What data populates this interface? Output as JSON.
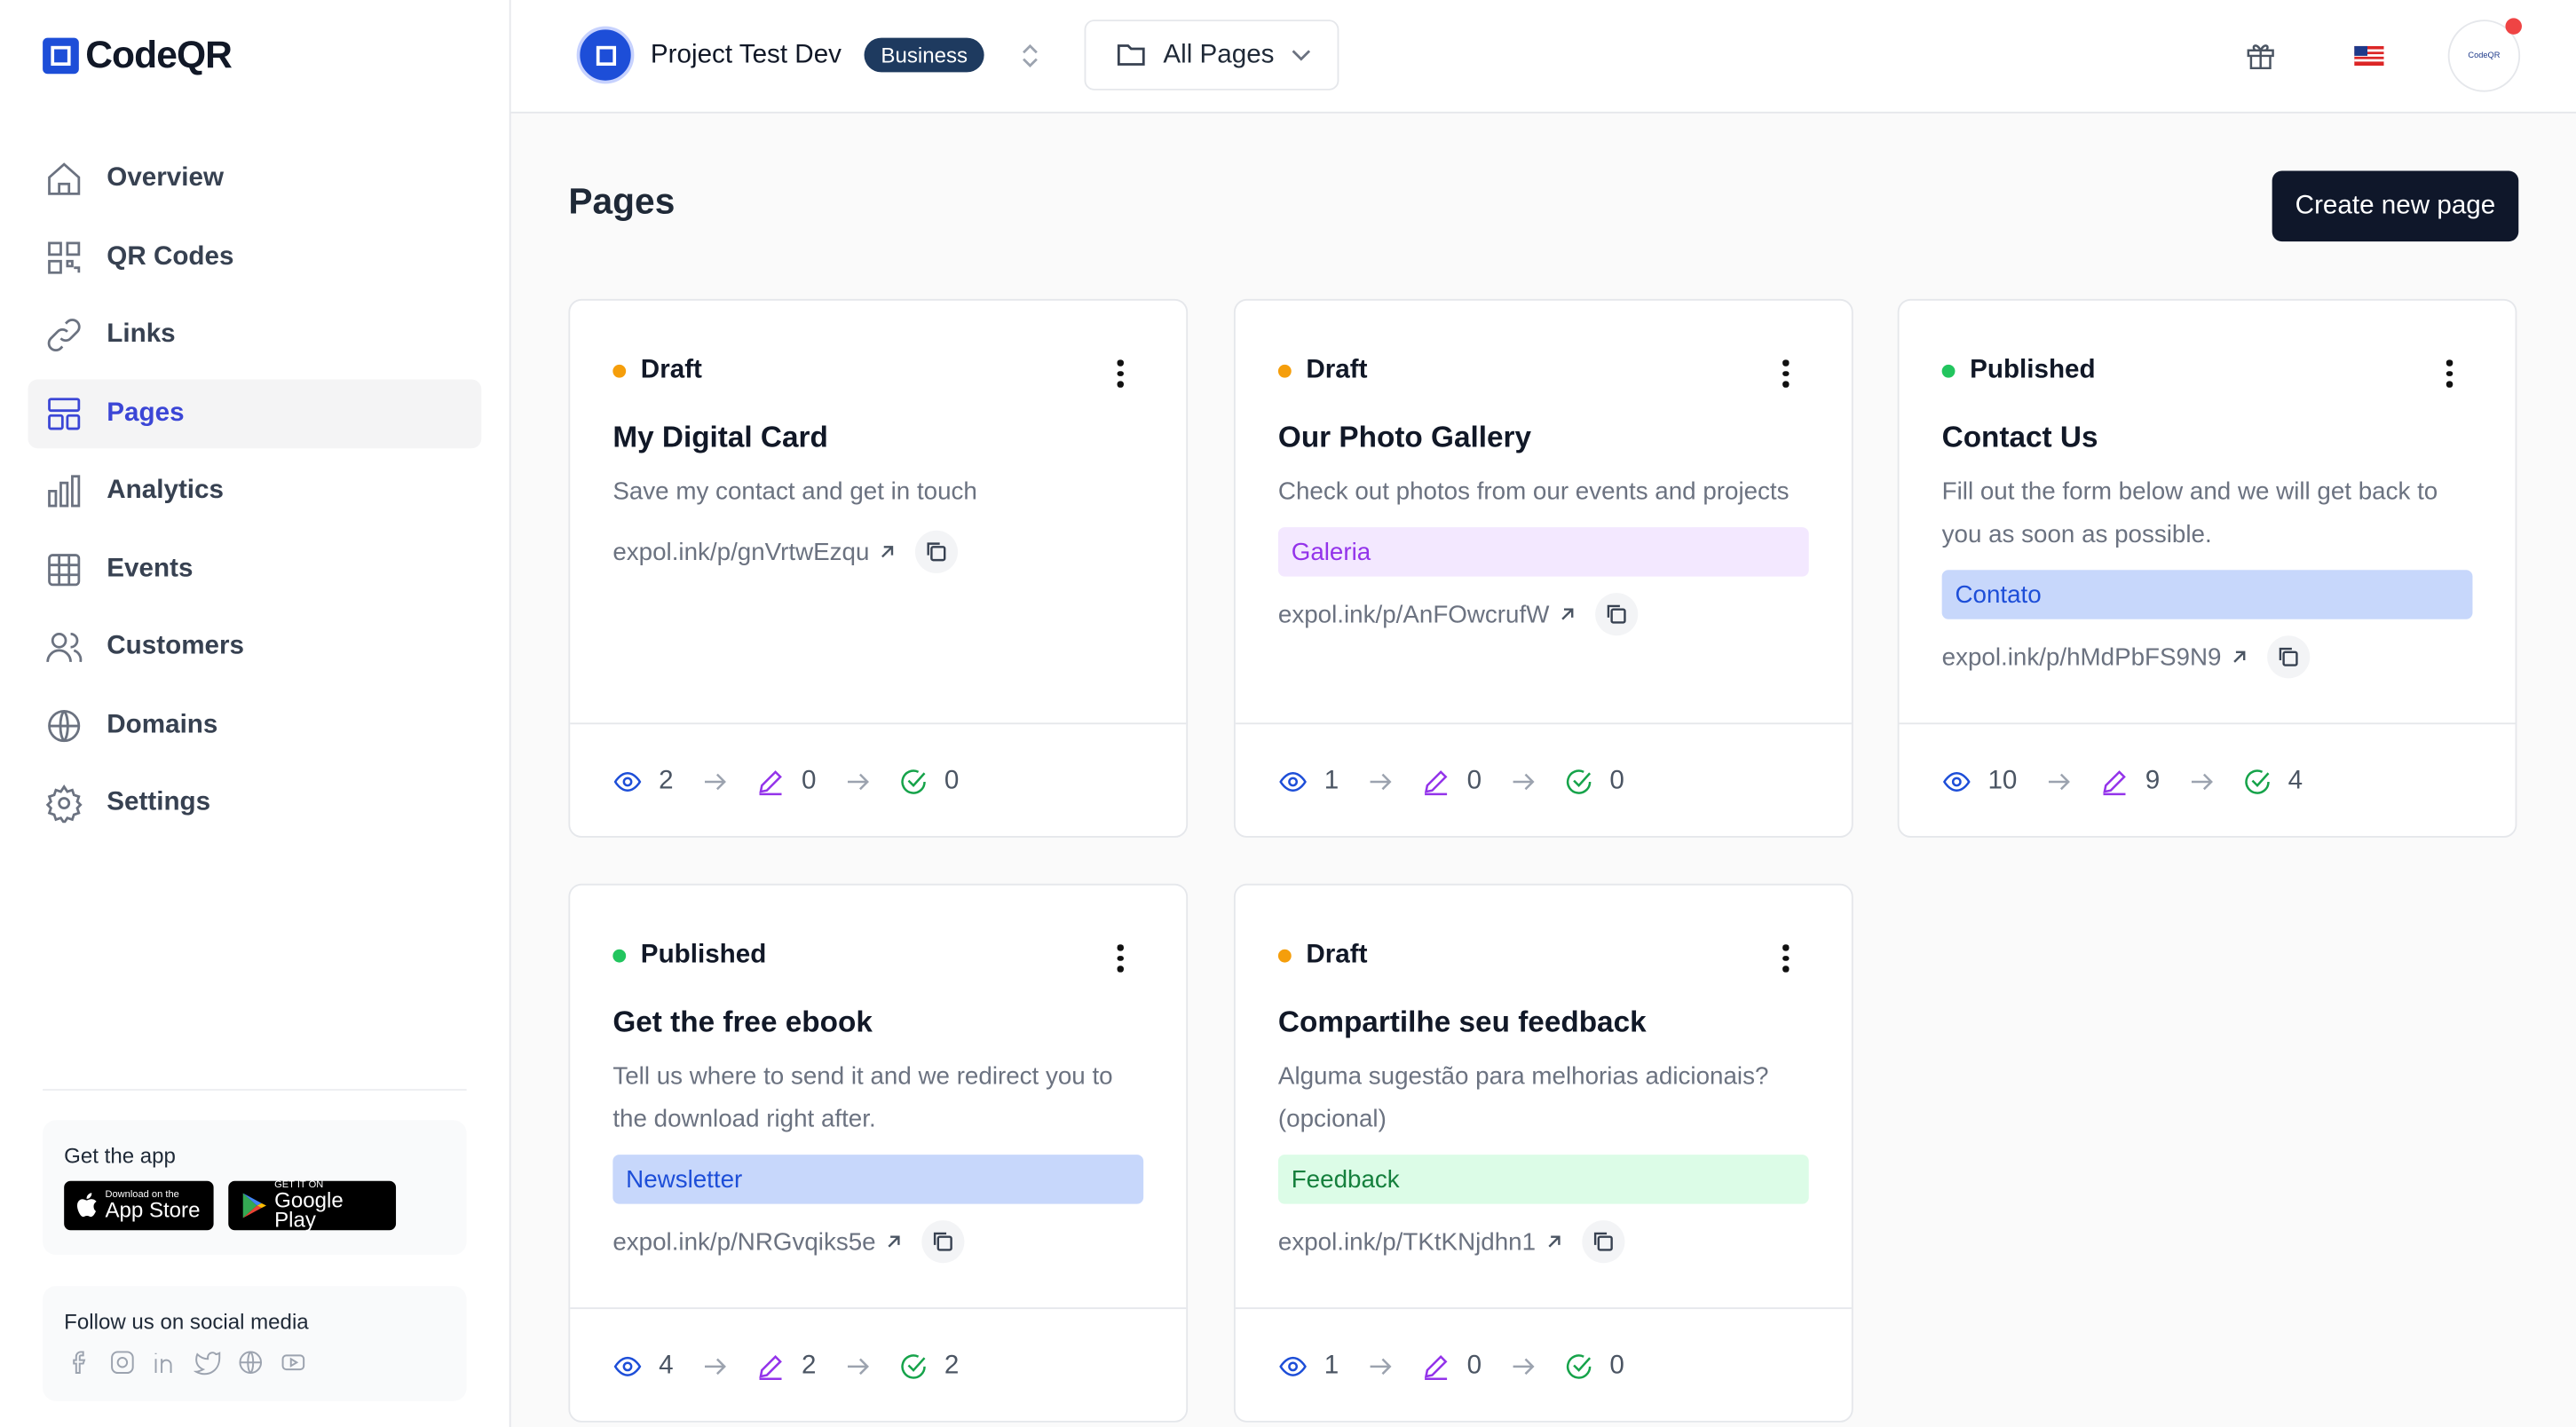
{
  "sidebar": {
    "brand": "CodeQR",
    "nav": [
      "Overview",
      "QR Codes",
      "Links",
      "Pages",
      "Analytics",
      "Events",
      "Customers",
      "Domains",
      "Settings"
    ],
    "app": {
      "title": "Get the app",
      "app_store": {
        "small": "Download on the",
        "big": "App Store"
      },
      "google_play": {
        "small": "GET IT ON",
        "big": "Google Play"
      }
    },
    "social": {
      "title": "Follow us on social media"
    }
  },
  "topbar": {
    "project": "Project Test Dev",
    "plan": "Business",
    "filter": "All Pages",
    "avatar": "CodeQR"
  },
  "page": {
    "title": "Pages",
    "create_button": "Create new page"
  },
  "cards": [
    {
      "status": "Draft",
      "status_color": "#f59e0b",
      "title": "My Digital Card",
      "description": "Save my contact and get in touch",
      "tag": null,
      "link": "expol.ink/p/gnVrtwEzqu",
      "views": 2,
      "edits": 0,
      "conversions": 0
    },
    {
      "status": "Draft",
      "status_color": "#f59e0b",
      "title": "Our Photo Gallery",
      "description": "Check out photos from our events and projects",
      "tag": "Galeria",
      "tag_color": "#f3e8ff",
      "tag_text_color": "#9333ea",
      "link": "expol.ink/p/AnFOwcrufW",
      "views": 1,
      "edits": 0,
      "conversions": 0
    },
    {
      "status": "Published",
      "status_color": "#22c55e",
      "title": "Contact Us",
      "description": "Fill out the form below and we will get back to you as soon as possible.",
      "tag": "Contato",
      "tag_color": "#c7d7fb",
      "tag_text_color": "#1d4ed8",
      "link": "expol.ink/p/hMdPbFS9N9",
      "views": 10,
      "edits": 9,
      "conversions": 4
    },
    {
      "status": "Published",
      "status_color": "#22c55e",
      "title": "Get the free ebook",
      "description": "Tell us where to send it and we redirect you to the download right after.",
      "tag": "Newsletter",
      "tag_color": "#c7d7fb",
      "tag_text_color": "#1d4ed8",
      "link": "expol.ink/p/NRGvqiks5e",
      "views": 4,
      "edits": 2,
      "conversions": 2
    },
    {
      "status": "Draft",
      "status_color": "#f59e0b",
      "title": "Compartilhe seu feedback",
      "description": "Alguma sugestão para melhorias adicionais? (opcional)",
      "tag": "Feedback",
      "tag_color": "#dcfce7",
      "tag_text_color": "#15803d",
      "link": "expol.ink/p/TKtKNjdhn1",
      "views": 1,
      "edits": 0,
      "conversions": 0
    }
  ]
}
